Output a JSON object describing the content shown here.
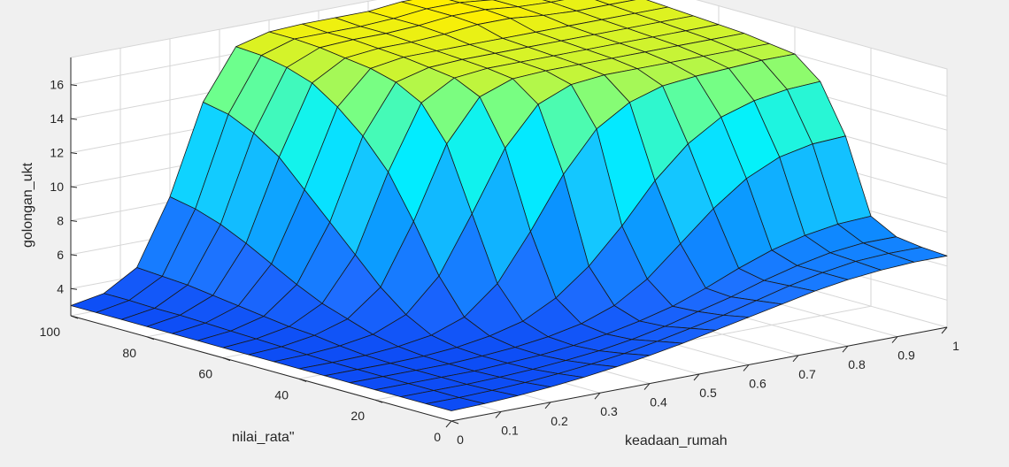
{
  "chart_data": {
    "type": "surface",
    "title": "",
    "xlabel": "keadaan_rumah",
    "ylabel": "nilai_rata\"",
    "zlabel": "golongan_ukt",
    "xlim": [
      0,
      1
    ],
    "ylim": [
      0,
      100
    ],
    "zlim": [
      2.4,
      17.6
    ],
    "xticks": [
      "0",
      "0.1",
      "0.2",
      "0.3",
      "0.4",
      "0.5",
      "0.6",
      "0.7",
      "0.8",
      "0.9",
      "1"
    ],
    "yticks": [
      "0",
      "20",
      "40",
      "60",
      "80",
      "100"
    ],
    "zticks": [
      "4",
      "6",
      "8",
      "10",
      "12",
      "14",
      "16"
    ],
    "grid": true,
    "colormap": [
      "#0d4cf5",
      "#1f6fff",
      "#0a90ff",
      "#14c8ff",
      "#00f0ff",
      "#6cff8e",
      "#ffee00"
    ],
    "surface": {
      "x": [
        0,
        0.0667,
        0.1333,
        0.2,
        0.2667,
        0.3333,
        0.4,
        0.4667,
        0.5333,
        0.6,
        0.6667,
        0.7333,
        0.8,
        0.8667,
        0.9333,
        1
      ],
      "y": [
        0,
        6.6667,
        13.3333,
        20,
        26.6667,
        33.3333,
        40,
        46.6667,
        53.3333,
        60,
        66.6667,
        73.3333,
        80,
        86.6667,
        93.3333,
        100
      ],
      "z": [
        [
          3,
          3.05,
          3.15,
          3.3,
          3.5,
          3.75,
          4.05,
          4.4,
          4.8,
          5.2,
          5.6,
          6,
          6.3,
          6.5,
          6.6,
          6.6
        ],
        [
          3,
          3,
          3.05,
          3.15,
          3.3,
          3.5,
          3.75,
          4.1,
          4.5,
          4.9,
          5.4,
          5.9,
          6.3,
          6.6,
          6.7,
          6.7
        ],
        [
          3,
          3,
          3,
          3.05,
          3.15,
          3.3,
          3.5,
          3.8,
          4.2,
          4.7,
          5.2,
          5.8,
          6.3,
          6.7,
          6.9,
          6.9
        ],
        [
          3,
          3,
          3,
          3,
          3.1,
          3.2,
          3.4,
          3.7,
          4.1,
          4.6,
          5.3,
          6.1,
          6.8,
          7.3,
          7.6,
          7.7
        ],
        [
          3,
          3,
          3,
          3,
          3.1,
          3.25,
          3.5,
          3.9,
          4.6,
          5.8,
          7.5,
          9.2,
          10.6,
          11.5,
          11.9,
          12
        ],
        [
          3,
          3,
          3,
          3.05,
          3.2,
          3.5,
          4,
          5,
          6.5,
          8.5,
          10.8,
          12.6,
          13.8,
          14.4,
          14.7,
          14.8
        ],
        [
          3,
          3,
          3.05,
          3.2,
          3.5,
          4.2,
          5.8,
          8.5,
          11.5,
          13.8,
          15,
          15.6,
          15.8,
          15.9,
          16,
          16
        ],
        [
          3,
          3.05,
          3.2,
          3.5,
          4.3,
          6.2,
          9.5,
          13,
          15.2,
          16,
          16.2,
          16.2,
          16.2,
          16.2,
          16.2,
          16.2
        ],
        [
          3,
          3.1,
          3.4,
          4,
          5.5,
          9,
          13.2,
          15.6,
          16.3,
          16.4,
          16.4,
          16.4,
          16.4,
          16.4,
          16.4,
          16.4
        ],
        [
          3,
          3.15,
          3.5,
          4.5,
          7,
          11.5,
          15.2,
          16.3,
          16.5,
          16.5,
          16.5,
          16.5,
          16.5,
          16.5,
          16.5,
          16.5
        ],
        [
          3,
          3.2,
          3.7,
          5.2,
          8.5,
          13.2,
          16,
          16.5,
          16.6,
          16.6,
          16.6,
          16.6,
          16.6,
          16.6,
          16.6,
          16.6
        ],
        [
          3,
          3.25,
          3.9,
          6,
          10,
          14.5,
          16.4,
          16.7,
          16.7,
          16.7,
          16.7,
          16.7,
          16.7,
          16.7,
          16.7,
          16.7
        ],
        [
          3,
          3.3,
          4.1,
          6.8,
          11.5,
          15.5,
          16.6,
          16.8,
          16.8,
          16.9,
          17.1,
          17.1,
          16.9,
          16.8,
          16.8,
          16.8
        ],
        [
          3,
          3.3,
          4.3,
          7.5,
          12.5,
          16,
          16.8,
          16.9,
          16.9,
          17,
          17.2,
          17.2,
          17,
          16.9,
          16.9,
          16.9
        ],
        [
          3,
          3.35,
          4.4,
          8,
          13.2,
          16.3,
          16.9,
          16.9,
          16.9,
          17,
          17.2,
          17.2,
          17,
          16.9,
          16.9,
          16.9
        ],
        [
          3,
          3.35,
          4.5,
          8.3,
          13.5,
          16.4,
          16.9,
          17,
          17,
          17,
          17.2,
          17.2,
          17,
          17,
          17,
          17
        ]
      ]
    }
  }
}
